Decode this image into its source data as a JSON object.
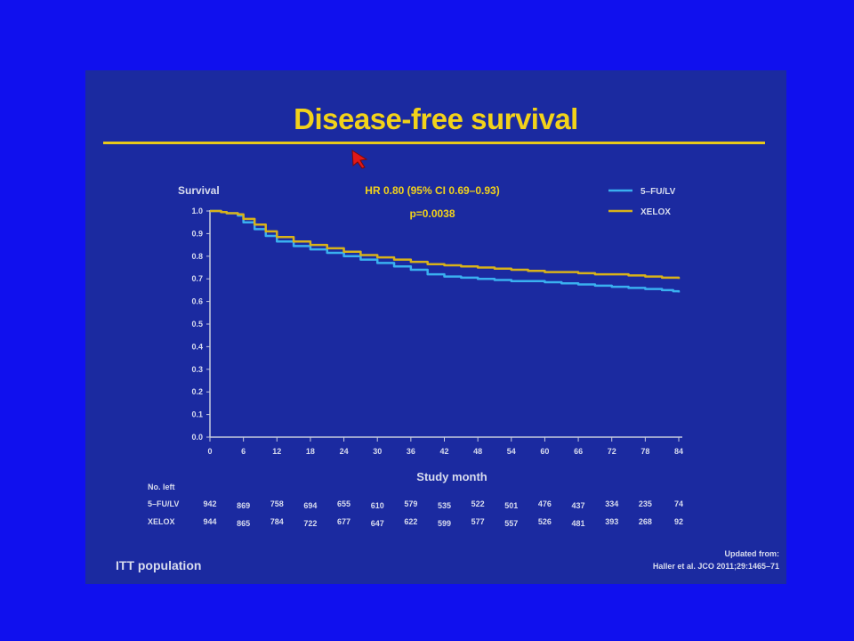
{
  "slide": {
    "title": "Disease-free survival",
    "footer_left": "ITT population",
    "footer_right_line1": "Updated from:",
    "footer_right_line2": "Haller et al. JCO 2011;29:1465–71"
  },
  "colors": {
    "background": "#1010ee",
    "slide_background": "#1b2aa0",
    "title": "#f2d21a",
    "series_5fu": "#3ab0f0",
    "series_xelox": "#d8b21a",
    "annotation": "#f2d21a",
    "pointer": "#e01818"
  },
  "icons": {
    "pointer": "arrow-cursor-icon"
  },
  "chart_data": {
    "type": "line",
    "ylabel": "Survival",
    "xlabel": "Study month",
    "ylim": [
      0.0,
      1.0
    ],
    "xlim": [
      0,
      84
    ],
    "x_ticks": [
      0,
      6,
      12,
      18,
      24,
      30,
      36,
      42,
      48,
      54,
      60,
      66,
      72,
      78,
      84
    ],
    "y_ticks": [
      "1.0",
      "0.9",
      "0.8",
      "0.7",
      "0.6",
      "0.5",
      "0.4",
      "0.3",
      "0.2",
      "0.1",
      "0.0"
    ],
    "annotation_line1": "HR 0.80 (95% CI 0.69–0.93)",
    "annotation_line2": "p=0.0038",
    "legend_position": "top-right",
    "grid": false,
    "series": [
      {
        "name": "5–FU/LV",
        "color": "#3ab0f0",
        "points": [
          [
            0,
            1.0
          ],
          [
            2,
            0.995
          ],
          [
            3,
            0.99
          ],
          [
            5,
            0.98
          ],
          [
            6,
            0.95
          ],
          [
            8,
            0.92
          ],
          [
            10,
            0.89
          ],
          [
            12,
            0.865
          ],
          [
            15,
            0.845
          ],
          [
            18,
            0.83
          ],
          [
            21,
            0.815
          ],
          [
            24,
            0.8
          ],
          [
            27,
            0.785
          ],
          [
            30,
            0.77
          ],
          [
            33,
            0.755
          ],
          [
            36,
            0.74
          ],
          [
            39,
            0.72
          ],
          [
            42,
            0.71
          ],
          [
            45,
            0.705
          ],
          [
            48,
            0.7
          ],
          [
            51,
            0.695
          ],
          [
            54,
            0.69
          ],
          [
            57,
            0.69
          ],
          [
            60,
            0.685
          ],
          [
            63,
            0.68
          ],
          [
            66,
            0.675
          ],
          [
            69,
            0.67
          ],
          [
            72,
            0.665
          ],
          [
            75,
            0.66
          ],
          [
            78,
            0.655
          ],
          [
            81,
            0.65
          ],
          [
            83,
            0.645
          ],
          [
            84,
            0.64
          ]
        ]
      },
      {
        "name": "XELOX",
        "color": "#d8b21a",
        "points": [
          [
            0,
            1.0
          ],
          [
            2,
            0.995
          ],
          [
            3,
            0.99
          ],
          [
            5,
            0.985
          ],
          [
            6,
            0.965
          ],
          [
            8,
            0.94
          ],
          [
            10,
            0.91
          ],
          [
            12,
            0.885
          ],
          [
            15,
            0.865
          ],
          [
            18,
            0.85
          ],
          [
            21,
            0.835
          ],
          [
            24,
            0.82
          ],
          [
            27,
            0.805
          ],
          [
            30,
            0.795
          ],
          [
            33,
            0.785
          ],
          [
            36,
            0.775
          ],
          [
            39,
            0.765
          ],
          [
            42,
            0.76
          ],
          [
            45,
            0.755
          ],
          [
            48,
            0.75
          ],
          [
            51,
            0.745
          ],
          [
            54,
            0.74
          ],
          [
            57,
            0.735
          ],
          [
            60,
            0.73
          ],
          [
            63,
            0.73
          ],
          [
            66,
            0.725
          ],
          [
            69,
            0.72
          ],
          [
            72,
            0.72
          ],
          [
            75,
            0.715
          ],
          [
            78,
            0.71
          ],
          [
            81,
            0.705
          ],
          [
            84,
            0.7
          ]
        ]
      }
    ],
    "at_risk": {
      "header": "No. left",
      "rows": [
        {
          "label": "5–FU/LV",
          "values": [
            "942",
            "869",
            "758",
            "694",
            "655",
            "610",
            "579",
            "535",
            "522",
            "501",
            "476",
            "437",
            "334",
            "235",
            "74"
          ]
        },
        {
          "label": "XELOX",
          "values": [
            "944",
            "865",
            "784",
            "722",
            "677",
            "647",
            "622",
            "599",
            "577",
            "557",
            "526",
            "481",
            "393",
            "268",
            "92"
          ]
        }
      ]
    }
  }
}
